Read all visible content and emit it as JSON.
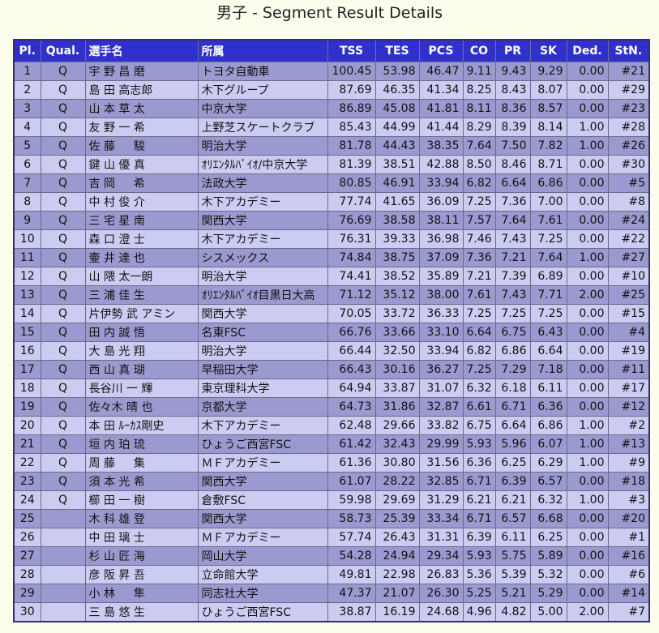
{
  "page": {
    "title": "男子 - Segment Result Details"
  },
  "table": {
    "headers": [
      "Pl.",
      "Qual.",
      "選手名",
      "所属",
      "TSS",
      "TES",
      "PCS",
      "CO",
      "PR",
      "SK",
      "Ded.",
      "StN."
    ],
    "rows": [
      [
        "1",
        "Q",
        "宇 野 昌 磨",
        "トヨタ自動車",
        "100.45",
        "53.98",
        "46.47",
        "9.11",
        "9.43",
        "9.29",
        "0.00",
        "#21"
      ],
      [
        "2",
        "Q",
        "島 田 高志郎",
        "木下グループ",
        "87.69",
        "46.35",
        "41.34",
        "8.25",
        "8.43",
        "8.07",
        "0.00",
        "#29"
      ],
      [
        "3",
        "Q",
        "山 本 草 太",
        "中京大学",
        "86.89",
        "45.08",
        "41.81",
        "8.11",
        "8.36",
        "8.57",
        "0.00",
        "#23"
      ],
      [
        "4",
        "Q",
        "友 野 一 希",
        "上野芝スケートクラブ",
        "85.43",
        "44.99",
        "41.44",
        "8.29",
        "8.39",
        "8.14",
        "1.00",
        "#28"
      ],
      [
        "5",
        "Q",
        "佐 藤 　 駿",
        "明治大学",
        "81.78",
        "44.43",
        "38.35",
        "7.64",
        "7.50",
        "7.82",
        "1.00",
        "#26"
      ],
      [
        "6",
        "Q",
        "鍵 山 優 真",
        "ｵﾘｴﾝﾀﾙﾊﾞｲｵ/中京大学",
        "81.39",
        "38.51",
        "42.88",
        "8.50",
        "8.46",
        "8.71",
        "0.00",
        "#30"
      ],
      [
        "7",
        "Q",
        "吉 岡 　 希",
        "法政大学",
        "80.85",
        "46.91",
        "33.94",
        "6.82",
        "6.64",
        "6.86",
        "0.00",
        "#5"
      ],
      [
        "8",
        "Q",
        "中 村 俊 介",
        "木下アカデミー",
        "77.74",
        "41.65",
        "36.09",
        "7.25",
        "7.36",
        "7.00",
        "0.00",
        "#8"
      ],
      [
        "9",
        "Q",
        "三 宅 星 南",
        "関西大学",
        "76.69",
        "38.58",
        "38.11",
        "7.57",
        "7.64",
        "7.61",
        "0.00",
        "#24"
      ],
      [
        "10",
        "Q",
        "森 口 澄 士",
        "木下アカデミー",
        "76.31",
        "39.33",
        "36.98",
        "7.46",
        "7.43",
        "7.25",
        "0.00",
        "#22"
      ],
      [
        "11",
        "Q",
        "壷 井 達 也",
        "シスメックス",
        "74.84",
        "38.75",
        "37.09",
        "7.36",
        "7.21",
        "7.64",
        "1.00",
        "#27"
      ],
      [
        "12",
        "Q",
        "山 隈 太一朗",
        "明治大学",
        "74.41",
        "38.52",
        "35.89",
        "7.21",
        "7.39",
        "6.89",
        "0.00",
        "#10"
      ],
      [
        "13",
        "Q",
        "三 浦 佳 生",
        "ｵﾘｴﾝﾀﾙﾊﾞｲｵ目黒日大高",
        "71.12",
        "35.12",
        "38.00",
        "7.61",
        "7.43",
        "7.71",
        "2.00",
        "#25"
      ],
      [
        "14",
        "Q",
        "片伊勢 武 アミン",
        "関西大学",
        "70.05",
        "33.72",
        "36.33",
        "7.25",
        "7.25",
        "7.25",
        "0.00",
        "#15"
      ],
      [
        "15",
        "Q",
        "田 内 誠 悟",
        "名東FSC",
        "66.76",
        "33.66",
        "33.10",
        "6.64",
        "6.75",
        "6.43",
        "0.00",
        "#4"
      ],
      [
        "16",
        "Q",
        "大 島 光 翔",
        "明治大学",
        "66.44",
        "32.50",
        "33.94",
        "6.82",
        "6.86",
        "6.64",
        "0.00",
        "#19"
      ],
      [
        "17",
        "Q",
        "西 山 真 瑚",
        "早稲田大学",
        "66.43",
        "30.16",
        "36.27",
        "7.25",
        "7.29",
        "7.18",
        "0.00",
        "#11"
      ],
      [
        "18",
        "Q",
        "長谷川 一 輝",
        "東京理科大学",
        "64.94",
        "33.87",
        "31.07",
        "6.32",
        "6.18",
        "6.11",
        "0.00",
        "#17"
      ],
      [
        "19",
        "Q",
        "佐々木 晴 也",
        "京都大学",
        "64.73",
        "31.86",
        "32.87",
        "6.61",
        "6.71",
        "6.36",
        "0.00",
        "#12"
      ],
      [
        "20",
        "Q",
        "本 田 ﾙｰｶｽ剛史",
        "木下アカデミー",
        "62.48",
        "29.66",
        "33.82",
        "6.75",
        "6.64",
        "6.86",
        "1.00",
        "#2"
      ],
      [
        "21",
        "Q",
        "垣 内 珀 琉",
        "ひょうご西宮FSC",
        "61.42",
        "32.43",
        "29.99",
        "5.93",
        "5.96",
        "6.07",
        "1.00",
        "#13"
      ],
      [
        "22",
        "Q",
        "周 藤 　 集",
        "ＭＦアカデミー",
        "61.36",
        "30.80",
        "31.56",
        "6.36",
        "6.25",
        "6.29",
        "1.00",
        "#9"
      ],
      [
        "23",
        "Q",
        "須 本 光 希",
        "関西大学",
        "61.07",
        "28.22",
        "32.85",
        "6.71",
        "6.39",
        "6.57",
        "0.00",
        "#18"
      ],
      [
        "24",
        "Q",
        "櫛 田 一 樹",
        "倉敷FSC",
        "59.98",
        "29.69",
        "31.29",
        "6.21",
        "6.21",
        "6.32",
        "1.00",
        "#3"
      ],
      [
        "25",
        "",
        "木 科 雄 登",
        "関西大学",
        "58.73",
        "25.39",
        "33.34",
        "6.71",
        "6.57",
        "6.68",
        "0.00",
        "#20"
      ],
      [
        "26",
        "",
        "中 田 璃 士",
        "ＭＦアカデミー",
        "57.74",
        "26.43",
        "31.31",
        "6.39",
        "6.11",
        "6.25",
        "0.00",
        "#1"
      ],
      [
        "27",
        "",
        "杉 山 匠 海",
        "岡山大学",
        "54.28",
        "24.94",
        "29.34",
        "5.93",
        "5.75",
        "5.89",
        "0.00",
        "#16"
      ],
      [
        "28",
        "",
        "彦 阪 昇 吾",
        "立命館大学",
        "49.81",
        "22.98",
        "26.83",
        "5.36",
        "5.39",
        "5.32",
        "0.00",
        "#6"
      ],
      [
        "29",
        "",
        "小 林 　 隼",
        "同志社大学",
        "47.37",
        "21.07",
        "26.30",
        "5.25",
        "5.21",
        "5.29",
        "0.00",
        "#14"
      ],
      [
        "30",
        "",
        "三 島 悠 生",
        "ひょうご西宮FSC",
        "38.87",
        "16.19",
        "24.68",
        "4.96",
        "4.82",
        "5.00",
        "2.00",
        "#7"
      ]
    ]
  },
  "colors": {
    "header_bg": "#3030cc",
    "row_odd": "#9a9ad0",
    "row_even": "#ccccf2",
    "page_bg": "#fdfdee"
  }
}
